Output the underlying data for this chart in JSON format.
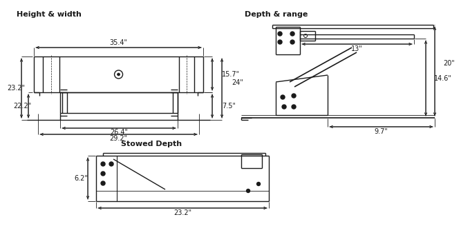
{
  "title_hw": "Height & width",
  "title_dr": "Depth & range",
  "title_sd": "Stowed Depth",
  "bg_color": "#ffffff",
  "lc": "#1a1a1a",
  "tc": "#1a1a1a",
  "dims_hw": {
    "width_top": "35.4\"",
    "width_inner1": "26.4\"",
    "width_inner2": "29.2\"",
    "height_left": "23.2\"",
    "height_left2": "22.2\"",
    "height_right1": "15.7\"",
    "height_right2": "24\"",
    "height_right3": "7.5\""
  },
  "dims_dr": {
    "width_top": "13\"",
    "width_bottom": "9.7\"",
    "height_right1": "20\"",
    "height_right2": "14.6\""
  },
  "dims_sd": {
    "height": "6.2\"",
    "width": "23.2\""
  }
}
